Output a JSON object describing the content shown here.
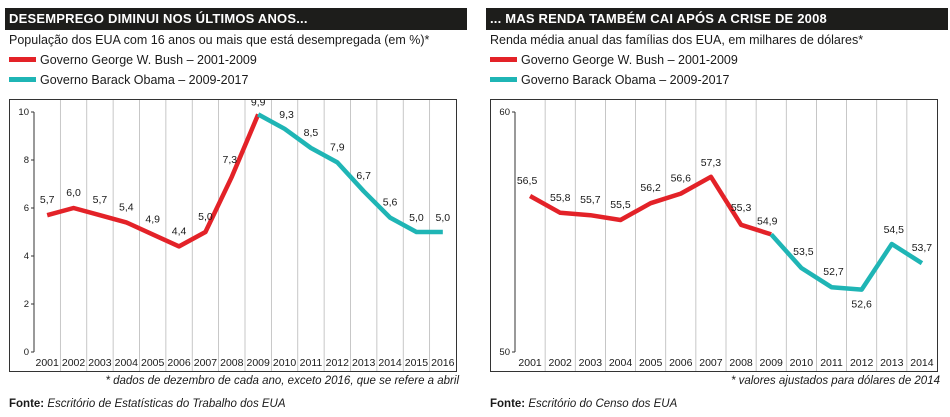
{
  "colors": {
    "bush": "#e32228",
    "obama": "#1fb5b5",
    "title_bg": "#1d1d1b",
    "grid": "#b9b9b9"
  },
  "left": {
    "title": "DESEMPREGO DIMINUI NOS ÚLTIMOS ANOS...",
    "subtitle": "População dos EUA com 16 anos ou mais que está desempregada (em %)*",
    "legend_bush": "Governo George W. Bush – 2001-2009",
    "legend_obama": "Governo Barack Obama – 2009-2017",
    "footnote": "* dados de dezembro de cada ano, exceto 2016, que se refere a abril",
    "source_label": "Fonte:",
    "source_text": " Escritório de Estatísticas do Trabalho dos EUA"
  },
  "right": {
    "title": "... MAS RENDA TAMBÉM CAI APÓS A CRISE DE 2008",
    "subtitle": "Renda média anual das famílias dos EUA, em milhares de dólares*",
    "legend_bush": "Governo George W. Bush – 2001-2009",
    "legend_obama": "Governo Barack Obama – 2009-2017",
    "footnote": "* valores ajustados para dólares de 2014",
    "source_label": "Fonte:",
    "source_text": " Escritório do Censo dos EUA"
  },
  "chart_data": [
    {
      "type": "line",
      "title": "DESEMPREGO DIMINUI NOS ÚLTIMOS ANOS...",
      "ylabel": "População dos EUA com 16 anos ou mais que está desempregada (em %)*",
      "x": [
        "2001",
        "2002",
        "2003",
        "2004",
        "2005",
        "2006",
        "2007",
        "2008",
        "2009",
        "2010",
        "2011",
        "2012",
        "2013",
        "2014",
        "2015",
        "2016"
      ],
      "ylim": [
        0,
        10
      ],
      "yticks": [
        0,
        2,
        4,
        6,
        8,
        10
      ],
      "grid": "vertical",
      "series": [
        {
          "name": "Governo George W. Bush – 2001-2009",
          "color": "#e32228",
          "x": [
            "2001",
            "2002",
            "2003",
            "2004",
            "2005",
            "2006",
            "2007",
            "2008",
            "2009"
          ],
          "values": [
            5.7,
            6.0,
            5.7,
            5.4,
            4.9,
            4.4,
            5.0,
            7.3,
            9.9
          ]
        },
        {
          "name": "Governo Barack Obama – 2009-2017",
          "color": "#1fb5b5",
          "x": [
            "2009",
            "2010",
            "2011",
            "2012",
            "2013",
            "2014",
            "2015",
            "2016"
          ],
          "values": [
            9.9,
            9.3,
            8.5,
            7.9,
            6.7,
            5.6,
            5.0,
            5.0
          ]
        }
      ],
      "labels": [
        {
          "x": "2001",
          "text": "5,7"
        },
        {
          "x": "2002",
          "text": "6,0"
        },
        {
          "x": "2003",
          "text": "5,7"
        },
        {
          "x": "2004",
          "text": "5,4"
        },
        {
          "x": "2005",
          "text": "4,9"
        },
        {
          "x": "2006",
          "text": "4,4"
        },
        {
          "x": "2007",
          "text": "5,0"
        },
        {
          "x": "2008",
          "text": "7,3"
        },
        {
          "x": "2009",
          "text": "9,9"
        },
        {
          "x": "2010",
          "text": "9,3"
        },
        {
          "x": "2011",
          "text": "8,5"
        },
        {
          "x": "2012",
          "text": "7,9"
        },
        {
          "x": "2013",
          "text": "6,7"
        },
        {
          "x": "2014",
          "text": "5,6"
        },
        {
          "x": "2015",
          "text": "5,0"
        },
        {
          "x": "2016",
          "text": "5,0"
        }
      ]
    },
    {
      "type": "line",
      "title": "... MAS RENDA TAMBÉM CAI APÓS A CRISE DE 2008",
      "ylabel": "Renda média anual das famílias dos EUA, em milhares de dólares*",
      "x": [
        "2001",
        "2002",
        "2003",
        "2004",
        "2005",
        "2006",
        "2007",
        "2008",
        "2009",
        "2010",
        "2011",
        "2012",
        "2013",
        "2014"
      ],
      "ylim": [
        50,
        60
      ],
      "yticks": [
        50,
        60
      ],
      "grid": "vertical",
      "series": [
        {
          "name": "Governo George W. Bush – 2001-2009",
          "color": "#e32228",
          "x": [
            "2001",
            "2002",
            "2003",
            "2004",
            "2005",
            "2006",
            "2007",
            "2008",
            "2009"
          ],
          "values": [
            56.5,
            55.8,
            55.7,
            55.5,
            56.2,
            56.6,
            57.3,
            55.3,
            54.9
          ]
        },
        {
          "name": "Governo Barack Obama – 2009-2017",
          "color": "#1fb5b5",
          "x": [
            "2009",
            "2010",
            "2011",
            "2012",
            "2013",
            "2014"
          ],
          "values": [
            54.9,
            53.5,
            52.7,
            52.6,
            54.5,
            53.7
          ]
        }
      ],
      "labels": [
        {
          "x": "2001",
          "text": "56,5"
        },
        {
          "x": "2002",
          "text": "55,8"
        },
        {
          "x": "2003",
          "text": "55,7"
        },
        {
          "x": "2004",
          "text": "55,5"
        },
        {
          "x": "2005",
          "text": "56,2"
        },
        {
          "x": "2006",
          "text": "56,6"
        },
        {
          "x": "2007",
          "text": "57,3"
        },
        {
          "x": "2008",
          "text": "55,3"
        },
        {
          "x": "2009",
          "text": "54,9"
        },
        {
          "x": "2010",
          "text": "53,5"
        },
        {
          "x": "2011",
          "text": "52,7"
        },
        {
          "x": "2012",
          "text": "52,6"
        },
        {
          "x": "2013",
          "text": "54,5"
        },
        {
          "x": "2014",
          "text": "53,7"
        }
      ]
    }
  ]
}
